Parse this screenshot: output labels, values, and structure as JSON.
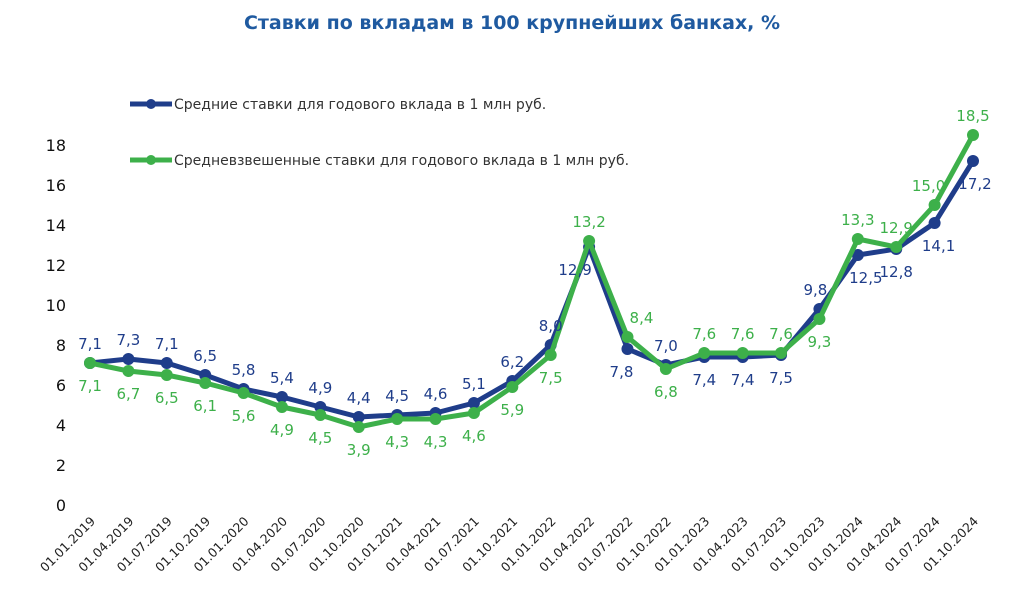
{
  "chart_data": {
    "type": "line",
    "title": "Ставки по вкладам в 100 крупнейших банках, %",
    "xlabel": "",
    "ylabel": "",
    "ylim": [
      0,
      18
    ],
    "yticks": [
      "0",
      "2",
      "4",
      "6",
      "8",
      "10",
      "12",
      "14",
      "16",
      "18"
    ],
    "grid": false,
    "legend_position": "top-left",
    "x": [
      "01.01.2019",
      "01.04.2019",
      "01.07.2019",
      "01.10.2019",
      "01.01.2020",
      "01.04.2020",
      "01.07.2020",
      "01.10.2020",
      "01.01.2021",
      "01.04.2021",
      "01.07.2021",
      "01.10.2021",
      "01.01.2022",
      "01.04.2022",
      "01.07.2022",
      "01.10.2022",
      "01.01.2023",
      "01.04.2023",
      "01.07.2023",
      "01.10.2023",
      "01.01.2024",
      "01.04.2024",
      "01.07.2024",
      "01.10.2024"
    ],
    "series": [
      {
        "name": "Средние ставки для годового вклада в 1 млн руб.",
        "color": "#1f3d8a",
        "values": [
          7.1,
          7.3,
          7.1,
          6.5,
          5.8,
          5.4,
          4.9,
          4.4,
          4.5,
          4.6,
          5.1,
          6.2,
          8.0,
          12.9,
          7.8,
          7.0,
          7.4,
          7.4,
          7.5,
          9.8,
          12.5,
          12.8,
          14.1,
          17.2
        ],
        "labels": [
          "7,1",
          "7,3",
          "7,1",
          "6,5",
          "5,8",
          "5,4",
          "4,9",
          "4,4",
          "4,5",
          "4,6",
          "5,1",
          "6,2",
          "8,0",
          "12,9",
          "7,8",
          "7,0",
          "7,4",
          "7,4",
          "7,5",
          "9,8",
          "12,5",
          "12,8",
          "14,1",
          "17,2"
        ],
        "label_side": [
          "above",
          "above",
          "above",
          "above",
          "above",
          "above",
          "above",
          "above",
          "above",
          "above",
          "above",
          "above",
          "above",
          "below",
          "below",
          "above",
          "below",
          "below",
          "below",
          "above",
          "below",
          "below",
          "below",
          "below"
        ]
      },
      {
        "name": "Средневзвешенные ставки для годового вклада в 1 млн руб.",
        "color": "#3db04a",
        "values": [
          7.1,
          6.7,
          6.5,
          6.1,
          5.6,
          4.9,
          4.5,
          3.9,
          4.3,
          4.3,
          4.6,
          5.9,
          7.5,
          13.2,
          8.4,
          6.8,
          7.6,
          7.6,
          7.6,
          9.3,
          13.3,
          12.9,
          15.0,
          18.5
        ],
        "labels": [
          "7,1",
          "6,7",
          "6,5",
          "6,1",
          "5,6",
          "4,9",
          "4,5",
          "3,9",
          "4,3",
          "4,3",
          "4,6",
          "5,9",
          "7,5",
          "13,2",
          "8,4",
          "6,8",
          "7,6",
          "7,6",
          "7,6",
          "9,3",
          "13,3",
          "12,9",
          "15,0",
          "18,5"
        ],
        "label_side": [
          "below",
          "below",
          "below",
          "below",
          "below",
          "below",
          "below",
          "below",
          "below",
          "below",
          "below",
          "below",
          "below",
          "above",
          "above",
          "below",
          "above",
          "above",
          "above",
          "below",
          "above",
          "above",
          "above",
          "above"
        ]
      }
    ]
  }
}
